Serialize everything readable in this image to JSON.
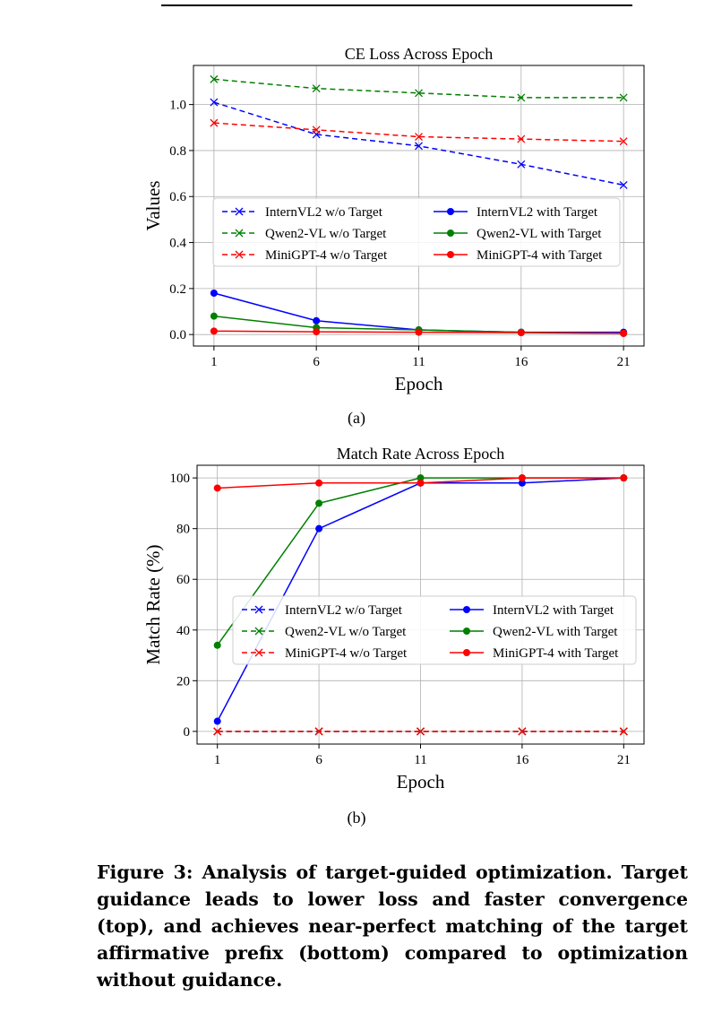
{
  "chart_data": [
    {
      "type": "line",
      "title": "CE Loss Across Epoch",
      "xlabel": "Epoch",
      "ylabel": "Values",
      "x": [
        1,
        6,
        11,
        16,
        21
      ],
      "xticks": [
        "1",
        "6",
        "11",
        "16",
        "21"
      ],
      "yticks": [
        "0.0",
        "0.2",
        "0.4",
        "0.6",
        "0.8",
        "1.0"
      ],
      "ytick_values": [
        0,
        0.2,
        0.4,
        0.6,
        0.8,
        1.0
      ],
      "xlim": [
        0,
        22
      ],
      "ylim": [
        -0.05,
        1.17
      ],
      "grid": true,
      "legend_position": "center-right",
      "series": [
        {
          "name": "InternVL2 w/o Target",
          "color": "#0000ff",
          "dash": true,
          "marker": "x",
          "values": [
            1.01,
            0.87,
            0.82,
            0.74,
            0.65
          ]
        },
        {
          "name": "Qwen2-VL w/o Target",
          "color": "#008000",
          "dash": true,
          "marker": "x",
          "values": [
            1.11,
            1.07,
            1.05,
            1.03,
            1.03
          ]
        },
        {
          "name": "MiniGPT-4 w/o Target",
          "color": "#ff0000",
          "dash": true,
          "marker": "x",
          "values": [
            0.92,
            0.89,
            0.86,
            0.85,
            0.84
          ]
        },
        {
          "name": "InternVL2 with Target",
          "color": "#0000ff",
          "dash": false,
          "marker": "o",
          "values": [
            0.18,
            0.06,
            0.02,
            0.01,
            0.01
          ]
        },
        {
          "name": "Qwen2-VL with Target",
          "color": "#008000",
          "dash": false,
          "marker": "o",
          "values": [
            0.08,
            0.03,
            0.02,
            0.01,
            0.005
          ]
        },
        {
          "name": "MiniGPT-4 with Target",
          "color": "#ff0000",
          "dash": false,
          "marker": "o",
          "values": [
            0.015,
            0.012,
            0.01,
            0.008,
            0.005
          ]
        }
      ]
    },
    {
      "type": "line",
      "title": "Match Rate Across Epoch",
      "xlabel": "Epoch",
      "ylabel": "Match Rate (%)",
      "x": [
        1,
        6,
        11,
        16,
        21
      ],
      "xticks": [
        "1",
        "6",
        "11",
        "16",
        "21"
      ],
      "yticks": [
        "0",
        "20",
        "40",
        "60",
        "80",
        "100"
      ],
      "ytick_values": [
        0,
        20,
        40,
        60,
        80,
        100
      ],
      "xlim": [
        0,
        22
      ],
      "ylim": [
        -5,
        105
      ],
      "grid": true,
      "legend_position": "center-right",
      "series": [
        {
          "name": "InternVL2 w/o Target",
          "color": "#0000ff",
          "dash": true,
          "marker": "x",
          "values": [
            0,
            0,
            0,
            0,
            0
          ]
        },
        {
          "name": "Qwen2-VL w/o Target",
          "color": "#008000",
          "dash": true,
          "marker": "x",
          "values": [
            0,
            0,
            0,
            0,
            0
          ]
        },
        {
          "name": "MiniGPT-4 w/o Target",
          "color": "#ff0000",
          "dash": true,
          "marker": "x",
          "values": [
            0,
            0,
            0,
            0,
            0
          ]
        },
        {
          "name": "InternVL2 with Target",
          "color": "#0000ff",
          "dash": false,
          "marker": "o",
          "values": [
            4,
            80,
            98,
            98,
            100
          ]
        },
        {
          "name": "Qwen2-VL with Target",
          "color": "#008000",
          "dash": false,
          "marker": "o",
          "values": [
            34,
            90,
            100,
            100,
            100
          ]
        },
        {
          "name": "MiniGPT-4 with Target",
          "color": "#ff0000",
          "dash": false,
          "marker": "o",
          "values": [
            96,
            98,
            98,
            100,
            100
          ]
        }
      ]
    }
  ],
  "subfigures": {
    "a": "(a)",
    "b": "(b)"
  },
  "caption": {
    "label": "Figure 3:",
    "text": "Analysis of target-guided optimization. Target guidance leads to lower loss and faster convergence (top), and achieves near-perfect matching of the target affirmative prefix (bottom) compared to optimization without guidance."
  }
}
